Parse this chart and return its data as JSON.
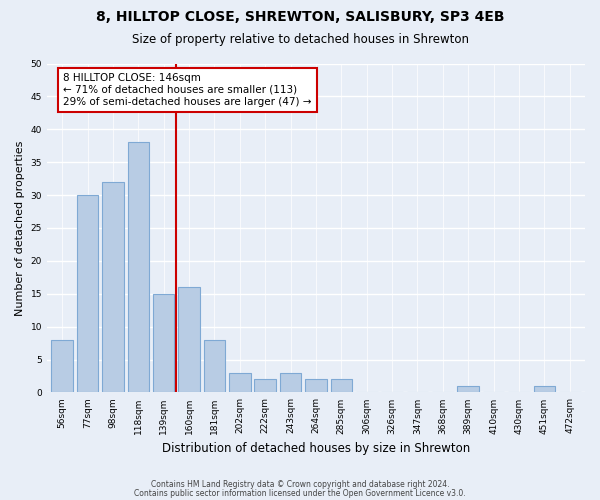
{
  "title1": "8, HILLTOP CLOSE, SHREWTON, SALISBURY, SP3 4EB",
  "title2": "Size of property relative to detached houses in Shrewton",
  "xlabel": "Distribution of detached houses by size in Shrewton",
  "ylabel": "Number of detached properties",
  "bins": [
    "56sqm",
    "77sqm",
    "98sqm",
    "118sqm",
    "139sqm",
    "160sqm",
    "181sqm",
    "202sqm",
    "222sqm",
    "243sqm",
    "264sqm",
    "285sqm",
    "306sqm",
    "326sqm",
    "347sqm",
    "368sqm",
    "389sqm",
    "410sqm",
    "430sqm",
    "451sqm",
    "472sqm"
  ],
  "values": [
    8,
    30,
    32,
    38,
    15,
    16,
    8,
    3,
    2,
    3,
    2,
    2,
    0,
    0,
    0,
    0,
    1,
    0,
    0,
    1,
    0
  ],
  "bar_color": "#b8cce4",
  "bar_edge_color": "#7fa9d4",
  "vline_pos": 4.5,
  "vline_color": "#cc0000",
  "annotation_title": "8 HILLTOP CLOSE: 146sqm",
  "annotation_line1": "← 71% of detached houses are smaller (113)",
  "annotation_line2": "29% of semi-detached houses are larger (47) →",
  "annotation_box_color": "#ffffff",
  "annotation_box_edge": "#cc0000",
  "footer1": "Contains HM Land Registry data © Crown copyright and database right 2024.",
  "footer2": "Contains public sector information licensed under the Open Government Licence v3.0.",
  "ylim": [
    0,
    50
  ],
  "background_color": "#e8eef7"
}
